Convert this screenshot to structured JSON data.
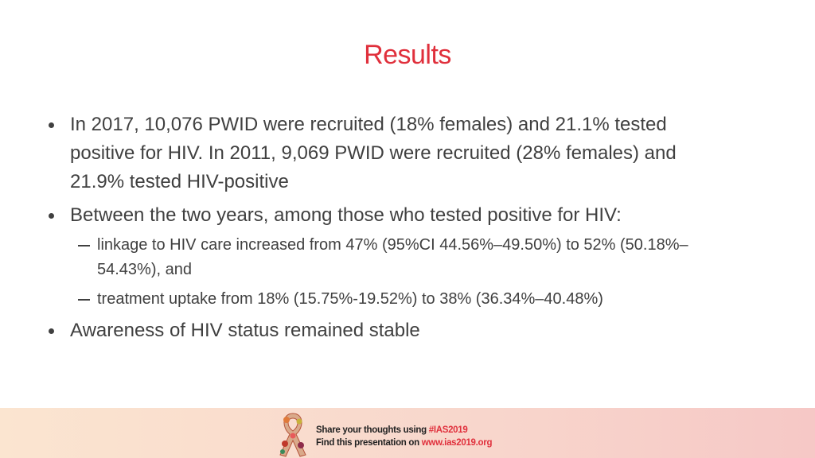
{
  "title": "Results",
  "bullets": [
    {
      "text": "In 2017, 10,076 PWID were recruited (18% females) and 21.1% tested positive for HIV. In 2011, 9,069 PWID were recruited (28% females) and 21.9% tested HIV-positive"
    },
    {
      "text": "Between the two years, among those who tested positive for HIV:",
      "sub_bullets": [
        "linkage to HIV care increased from 47% (95%CI 44.56%–49.50%) to 52% (50.18%–54.43%), and",
        "treatment uptake from 18% (15.75%-19.52%) to 38% (36.34%–40.48%)"
      ]
    },
    {
      "text": "Awareness of HIV status remained stable"
    }
  ],
  "footer": {
    "line1": {
      "text": "Share your thoughts using",
      "highlight": "#IAS2019"
    },
    "line2": {
      "text": "Find this presentation on",
      "highlight": "www.ias2019.org"
    }
  }
}
